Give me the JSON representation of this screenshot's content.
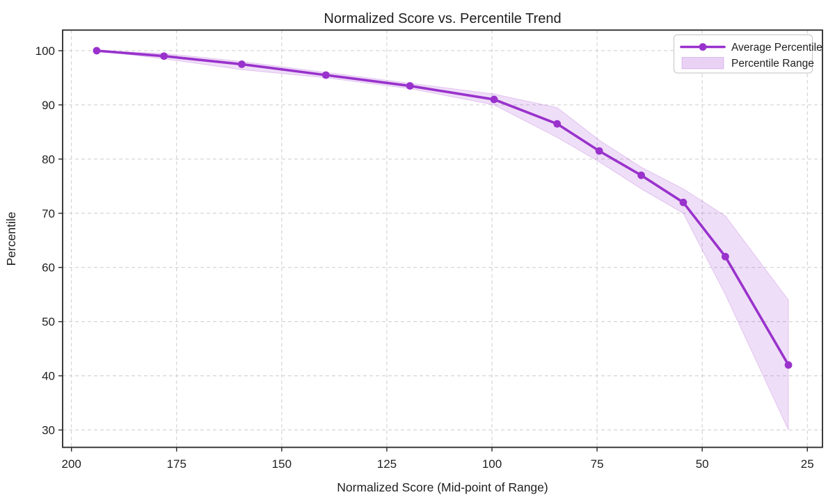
{
  "chart_data": {
    "type": "line",
    "title": "Normalized Score vs. Percentile Trend",
    "xlabel": "Normalized Score (Mid-point of Range)",
    "ylabel": "Percentile",
    "x_axis": {
      "inverted": true,
      "lim": [
        202.1,
        21.4
      ],
      "ticks": [
        200,
        175,
        150,
        125,
        100,
        75,
        50,
        25
      ]
    },
    "y_axis": {
      "lim": [
        26.8,
        103.8
      ],
      "ticks": [
        30,
        40,
        50,
        60,
        70,
        80,
        90,
        100
      ]
    },
    "grid": {
      "show": true,
      "style": "dashed"
    },
    "x": [
      194,
      178,
      159.5,
      139.5,
      119.5,
      99.5,
      84.5,
      74.5,
      64.5,
      54.5,
      44.5,
      29.5
    ],
    "series": [
      {
        "name": "Average Percentile",
        "type": "line_markers",
        "color": "#9932cc",
        "values": [
          100,
          99,
          97.5,
          95.5,
          93.5,
          91,
          86.5,
          81.5,
          77,
          72,
          62,
          42
        ]
      },
      {
        "name": "Percentile Range",
        "type": "band",
        "color": "#9932cc",
        "fill_opacity": 0.16,
        "lower": [
          100,
          98.5,
          96.5,
          95,
          93,
          90,
          84,
          79.5,
          74.5,
          70,
          55,
          30
        ],
        "upper": [
          100,
          99.5,
          98,
          96,
          94,
          92,
          89.5,
          83.5,
          78.5,
          74.5,
          69.5,
          54
        ]
      }
    ],
    "legend": {
      "position": "upper-right"
    }
  },
  "colors": {
    "accent": "#9932cc",
    "text": "#1f1f1f",
    "grid": "#cccccc",
    "spine": "#262626",
    "legend_border": "#cccccc",
    "background": "#ffffff"
  }
}
